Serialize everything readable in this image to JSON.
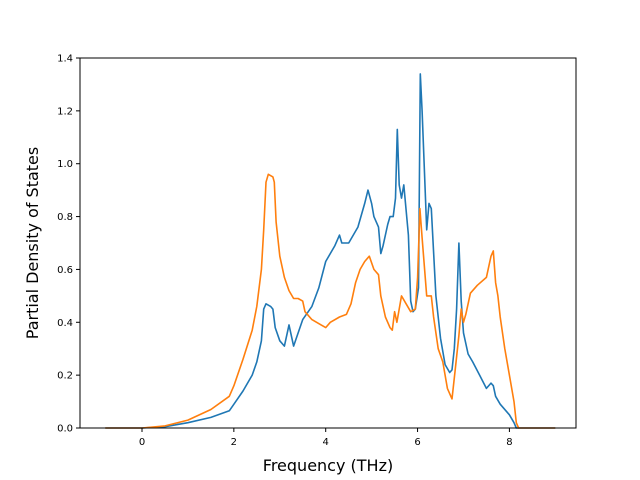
{
  "chart_data": {
    "type": "line",
    "xlabel": "Frequency (THz)",
    "ylabel": "Partial Density of States",
    "xlim": [
      -1.35,
      9.45
    ],
    "ylim": [
      0,
      1.4
    ],
    "xticks": [
      0,
      2,
      4,
      6,
      8
    ],
    "yticks": [
      0.0,
      0.2,
      0.4,
      0.6,
      0.8,
      1.0,
      1.2,
      1.4
    ],
    "xtick_labels": [
      "0",
      "2",
      "4",
      "6",
      "8"
    ],
    "ytick_labels": [
      "0.0",
      "0.2",
      "0.4",
      "0.6",
      "0.8",
      "1.0",
      "1.2",
      "1.4"
    ],
    "grid": false,
    "series": [
      {
        "color": "#1f77b4",
        "points": [
          [
            -0.8,
            0
          ],
          [
            0,
            0
          ],
          [
            0.5,
            0.005
          ],
          [
            1.0,
            0.02
          ],
          [
            1.5,
            0.04
          ],
          [
            1.9,
            0.065
          ],
          [
            2.0,
            0.09
          ],
          [
            2.2,
            0.14
          ],
          [
            2.4,
            0.2
          ],
          [
            2.5,
            0.25
          ],
          [
            2.6,
            0.33
          ],
          [
            2.65,
            0.45
          ],
          [
            2.7,
            0.47
          ],
          [
            2.8,
            0.46
          ],
          [
            2.85,
            0.45
          ],
          [
            2.9,
            0.38
          ],
          [
            3.0,
            0.33
          ],
          [
            3.1,
            0.31
          ],
          [
            3.2,
            0.39
          ],
          [
            3.3,
            0.31
          ],
          [
            3.5,
            0.41
          ],
          [
            3.7,
            0.46
          ],
          [
            3.85,
            0.53
          ],
          [
            4.0,
            0.63
          ],
          [
            4.2,
            0.69
          ],
          [
            4.3,
            0.73
          ],
          [
            4.35,
            0.7
          ],
          [
            4.5,
            0.7
          ],
          [
            4.7,
            0.76
          ],
          [
            4.85,
            0.85
          ],
          [
            4.92,
            0.9
          ],
          [
            5.0,
            0.85
          ],
          [
            5.05,
            0.8
          ],
          [
            5.15,
            0.76
          ],
          [
            5.2,
            0.66
          ],
          [
            5.25,
            0.69
          ],
          [
            5.35,
            0.77
          ],
          [
            5.4,
            0.8
          ],
          [
            5.47,
            0.8
          ],
          [
            5.52,
            0.87
          ],
          [
            5.56,
            1.13
          ],
          [
            5.6,
            0.92
          ],
          [
            5.65,
            0.87
          ],
          [
            5.7,
            0.92
          ],
          [
            5.8,
            0.73
          ],
          [
            5.85,
            0.48
          ],
          [
            5.9,
            0.44
          ],
          [
            5.95,
            0.45
          ],
          [
            6.02,
            0.53
          ],
          [
            6.06,
            1.34
          ],
          [
            6.1,
            1.2
          ],
          [
            6.2,
            0.75
          ],
          [
            6.25,
            0.85
          ],
          [
            6.3,
            0.83
          ],
          [
            6.4,
            0.5
          ],
          [
            6.5,
            0.34
          ],
          [
            6.6,
            0.24
          ],
          [
            6.7,
            0.21
          ],
          [
            6.75,
            0.22
          ],
          [
            6.8,
            0.3
          ],
          [
            6.85,
            0.45
          ],
          [
            6.9,
            0.7
          ],
          [
            6.95,
            0.48
          ],
          [
            7.0,
            0.36
          ],
          [
            7.1,
            0.28
          ],
          [
            7.2,
            0.25
          ],
          [
            7.35,
            0.2
          ],
          [
            7.5,
            0.15
          ],
          [
            7.6,
            0.17
          ],
          [
            7.65,
            0.16
          ],
          [
            7.7,
            0.12
          ],
          [
            7.8,
            0.09
          ],
          [
            8.0,
            0.05
          ],
          [
            8.1,
            0.02
          ],
          [
            8.15,
            0.0
          ],
          [
            9.0,
            0
          ]
        ]
      },
      {
        "color": "#ff7f0e",
        "points": [
          [
            -0.8,
            0
          ],
          [
            0,
            0
          ],
          [
            0.5,
            0.008
          ],
          [
            1.0,
            0.03
          ],
          [
            1.5,
            0.07
          ],
          [
            1.9,
            0.12
          ],
          [
            2.0,
            0.16
          ],
          [
            2.2,
            0.26
          ],
          [
            2.4,
            0.37
          ],
          [
            2.5,
            0.46
          ],
          [
            2.6,
            0.6
          ],
          [
            2.65,
            0.75
          ],
          [
            2.7,
            0.93
          ],
          [
            2.75,
            0.96
          ],
          [
            2.85,
            0.95
          ],
          [
            2.88,
            0.93
          ],
          [
            2.92,
            0.78
          ],
          [
            3.0,
            0.65
          ],
          [
            3.1,
            0.57
          ],
          [
            3.2,
            0.52
          ],
          [
            3.3,
            0.49
          ],
          [
            3.4,
            0.49
          ],
          [
            3.5,
            0.48
          ],
          [
            3.55,
            0.44
          ],
          [
            3.7,
            0.41
          ],
          [
            3.9,
            0.39
          ],
          [
            4.0,
            0.38
          ],
          [
            4.1,
            0.4
          ],
          [
            4.3,
            0.42
          ],
          [
            4.45,
            0.43
          ],
          [
            4.55,
            0.47
          ],
          [
            4.65,
            0.55
          ],
          [
            4.75,
            0.6
          ],
          [
            4.85,
            0.63
          ],
          [
            4.95,
            0.65
          ],
          [
            5.05,
            0.6
          ],
          [
            5.15,
            0.58
          ],
          [
            5.2,
            0.5
          ],
          [
            5.3,
            0.42
          ],
          [
            5.4,
            0.38
          ],
          [
            5.45,
            0.37
          ],
          [
            5.5,
            0.44
          ],
          [
            5.55,
            0.4
          ],
          [
            5.65,
            0.5
          ],
          [
            5.75,
            0.47
          ],
          [
            5.85,
            0.44
          ],
          [
            5.95,
            0.45
          ],
          [
            6.0,
            0.57
          ],
          [
            6.05,
            0.83
          ],
          [
            6.1,
            0.72
          ],
          [
            6.2,
            0.5
          ],
          [
            6.3,
            0.5
          ],
          [
            6.35,
            0.42
          ],
          [
            6.45,
            0.3
          ],
          [
            6.55,
            0.25
          ],
          [
            6.65,
            0.15
          ],
          [
            6.75,
            0.11
          ],
          [
            6.82,
            0.22
          ],
          [
            6.9,
            0.35
          ],
          [
            6.95,
            0.45
          ],
          [
            7.0,
            0.4
          ],
          [
            7.05,
            0.43
          ],
          [
            7.15,
            0.51
          ],
          [
            7.3,
            0.54
          ],
          [
            7.5,
            0.57
          ],
          [
            7.6,
            0.65
          ],
          [
            7.65,
            0.67
          ],
          [
            7.7,
            0.55
          ],
          [
            7.75,
            0.5
          ],
          [
            7.8,
            0.42
          ],
          [
            7.9,
            0.3
          ],
          [
            8.0,
            0.2
          ],
          [
            8.1,
            0.1
          ],
          [
            8.15,
            0.02
          ],
          [
            8.2,
            0
          ],
          [
            9.0,
            0
          ]
        ]
      }
    ]
  }
}
